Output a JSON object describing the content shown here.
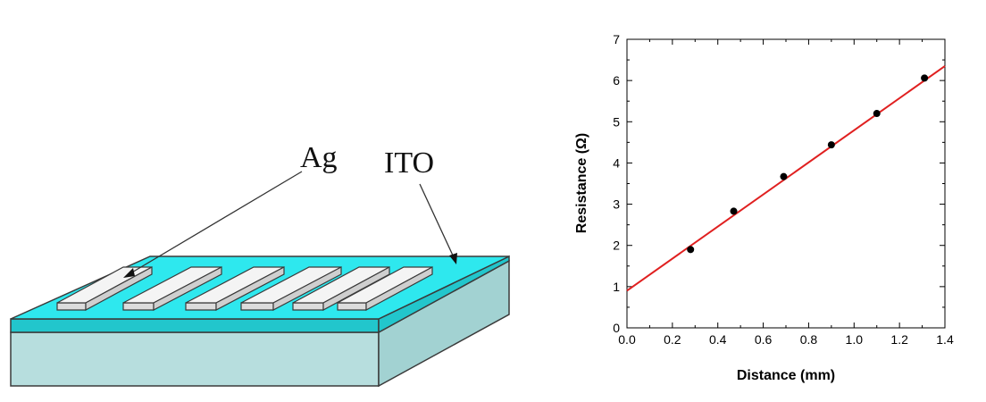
{
  "diagram": {
    "labels": {
      "ag": "Ag",
      "ito": "ITO"
    },
    "colors": {
      "ito_top": "#2ee8ee",
      "ito_edge": "#22c6cc",
      "substrate_front": "#b7dede",
      "substrate_side": "#a2d2d2",
      "electrode_fill": "#f4f4f4",
      "outline": "#3a3a3a"
    },
    "electrode_count": 6
  },
  "chart_data": {
    "type": "scatter",
    "title": "",
    "xlabel": "Distance (mm)",
    "ylabel": "Resistance (Ω)",
    "xlim": [
      0.0,
      1.4
    ],
    "ylim": [
      0,
      7
    ],
    "x_ticks": [
      "0.0",
      "0.2",
      "0.4",
      "0.6",
      "0.8",
      "1.0",
      "1.2",
      "1.4"
    ],
    "y_ticks": [
      "0",
      "1",
      "2",
      "3",
      "4",
      "5",
      "6",
      "7"
    ],
    "points": [
      {
        "x": 0.28,
        "y": 1.9
      },
      {
        "x": 0.47,
        "y": 2.83
      },
      {
        "x": 0.69,
        "y": 3.67
      },
      {
        "x": 0.9,
        "y": 4.44
      },
      {
        "x": 1.1,
        "y": 5.2
      },
      {
        "x": 1.31,
        "y": 6.06
      }
    ],
    "fit_line": {
      "x": [
        0.0,
        1.4
      ],
      "y": [
        0.9,
        6.35
      ],
      "color": "#e02020"
    },
    "marker_color": "#000000",
    "grid": false,
    "legend": "none"
  }
}
